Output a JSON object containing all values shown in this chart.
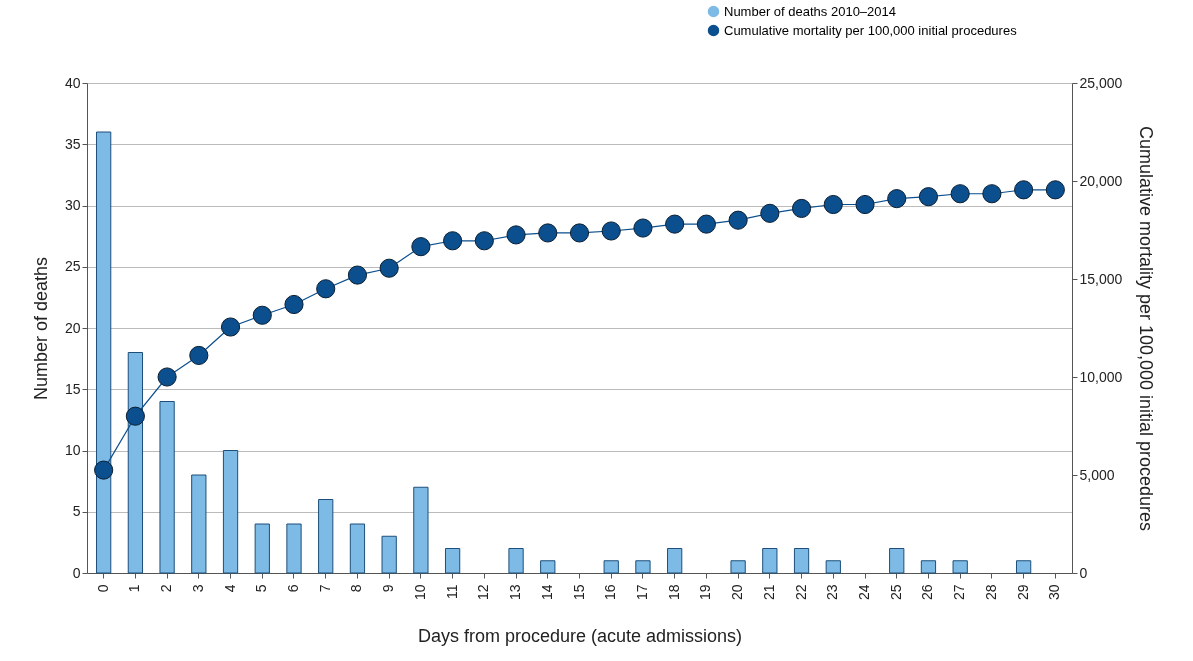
{
  "chart_data": {
    "type": "bar",
    "categories": [
      "0",
      "1",
      "2",
      "3",
      "4",
      "5",
      "6",
      "7",
      "8",
      "9",
      "10",
      "11",
      "12",
      "13",
      "14",
      "15",
      "16",
      "17",
      "18",
      "19",
      "20",
      "21",
      "22",
      "23",
      "24",
      "25",
      "26",
      "27",
      "28",
      "29",
      "30"
    ],
    "series": [
      {
        "name": "Number of deaths 2010–2014",
        "color": "#7dbbe6",
        "values": [
          36,
          18,
          14,
          8,
          10,
          4,
          4,
          6,
          4,
          3,
          7,
          2,
          0,
          2,
          1,
          0,
          1,
          1,
          2,
          0,
          1,
          2,
          2,
          1,
          0,
          2,
          1,
          1,
          0,
          1,
          0
        ]
      },
      {
        "name": "Cumulative mortality per 100,000 initial procedures",
        "type": "line",
        "axis": "y2",
        "color": "#0b4f8e",
        "values": [
          5250,
          8000,
          10000,
          11100,
          12550,
          13150,
          13700,
          14500,
          15200,
          15550,
          16650,
          16950,
          16950,
          17250,
          17350,
          17350,
          17450,
          17600,
          17800,
          17800,
          18000,
          18350,
          18600,
          18800,
          18800,
          19100,
          19200,
          19350,
          19350,
          19550,
          19550
        ]
      }
    ],
    "xlabel": "Days from procedure (acute admissions)",
    "ylabel": "Number of deaths",
    "y2label": "Cumulative mortality per 100,000 initial procedures",
    "ylim": [
      0,
      40
    ],
    "yticks": [
      0,
      5,
      10,
      15,
      20,
      25,
      30,
      35,
      40
    ],
    "y2lim": [
      0,
      25000
    ],
    "y2ticks": [
      0,
      {
        "value": 5000,
        "label": "5,000"
      },
      {
        "value": 10000,
        "label": "10,000"
      },
      {
        "value": 15000,
        "label": "15,000"
      },
      {
        "value": 20000,
        "label": "20,000"
      },
      {
        "value": 25000,
        "label": "25,000"
      }
    ],
    "grid": "y",
    "legend": "top right",
    "marker": "circle"
  }
}
